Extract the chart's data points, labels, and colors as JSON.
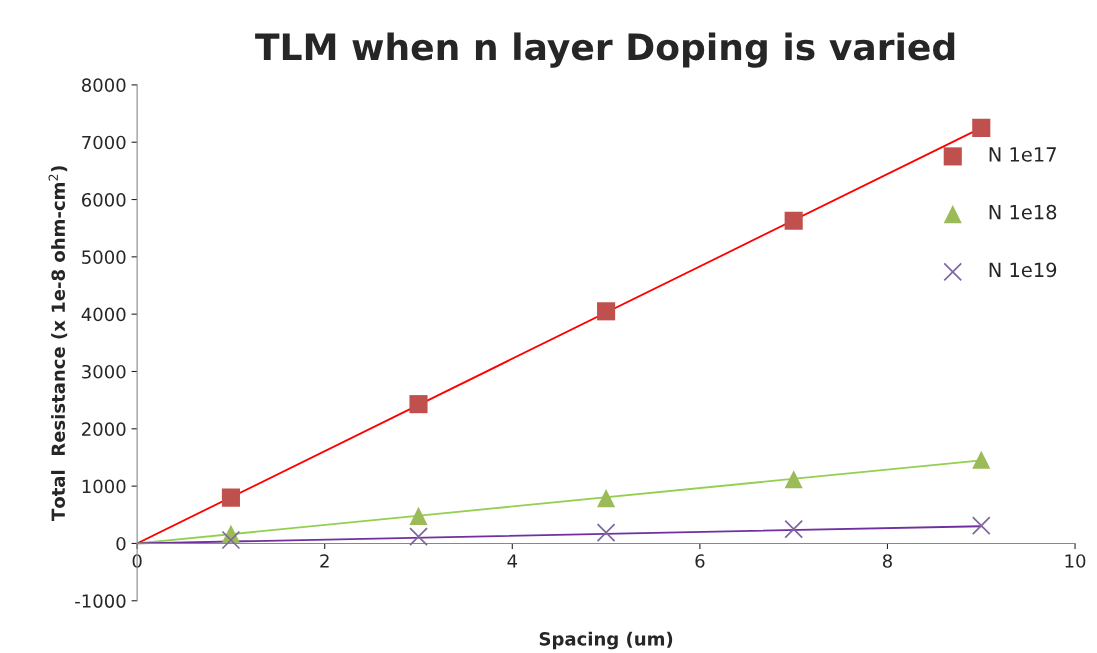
{
  "chart_data": {
    "type": "scatter",
    "title": "TLM when n layer Doping is varied",
    "xlabel": "Spacing (um)",
    "ylabel": "Total  Resistance (x 1e-8 ohm-cm$^{2}$)",
    "xlim": [
      0,
      10
    ],
    "xticks": [
      0,
      2,
      4,
      6,
      8,
      10
    ],
    "ylim": [
      -1000,
      8000
    ],
    "yticks": [
      -1000,
      0,
      1000,
      2000,
      3000,
      4000,
      5000,
      6000,
      7000,
      8000
    ],
    "grid": false,
    "legend": "right",
    "series": [
      {
        "name": "N 1e17",
        "marker": "square",
        "color": "#c0504d",
        "x": [
          1,
          3,
          5,
          7,
          9
        ],
        "values": [
          800,
          2430,
          4050,
          5630,
          7250
        ]
      },
      {
        "name": "N 1e18",
        "marker": "triangle",
        "color": "#9bbb59",
        "x": [
          1,
          3,
          5,
          7,
          9
        ],
        "values": [
          170,
          480,
          790,
          1120,
          1460
        ]
      },
      {
        "name": "N 1e19",
        "marker": "cross",
        "color": "#8064a2",
        "x": [
          1,
          3,
          5,
          7,
          9
        ],
        "values": [
          60,
          120,
          190,
          250,
          310
        ]
      },
      {
        "type": "line",
        "color": "#ff0000",
        "x": [
          0,
          9
        ],
        "values": [
          0,
          7250
        ]
      },
      {
        "type": "line",
        "color": "#92d050",
        "x": [
          0,
          9
        ],
        "values": [
          0,
          1450
        ]
      },
      {
        "type": "line",
        "color": "#7030a0",
        "x": [
          0,
          9
        ],
        "values": [
          0,
          300
        ]
      }
    ]
  }
}
